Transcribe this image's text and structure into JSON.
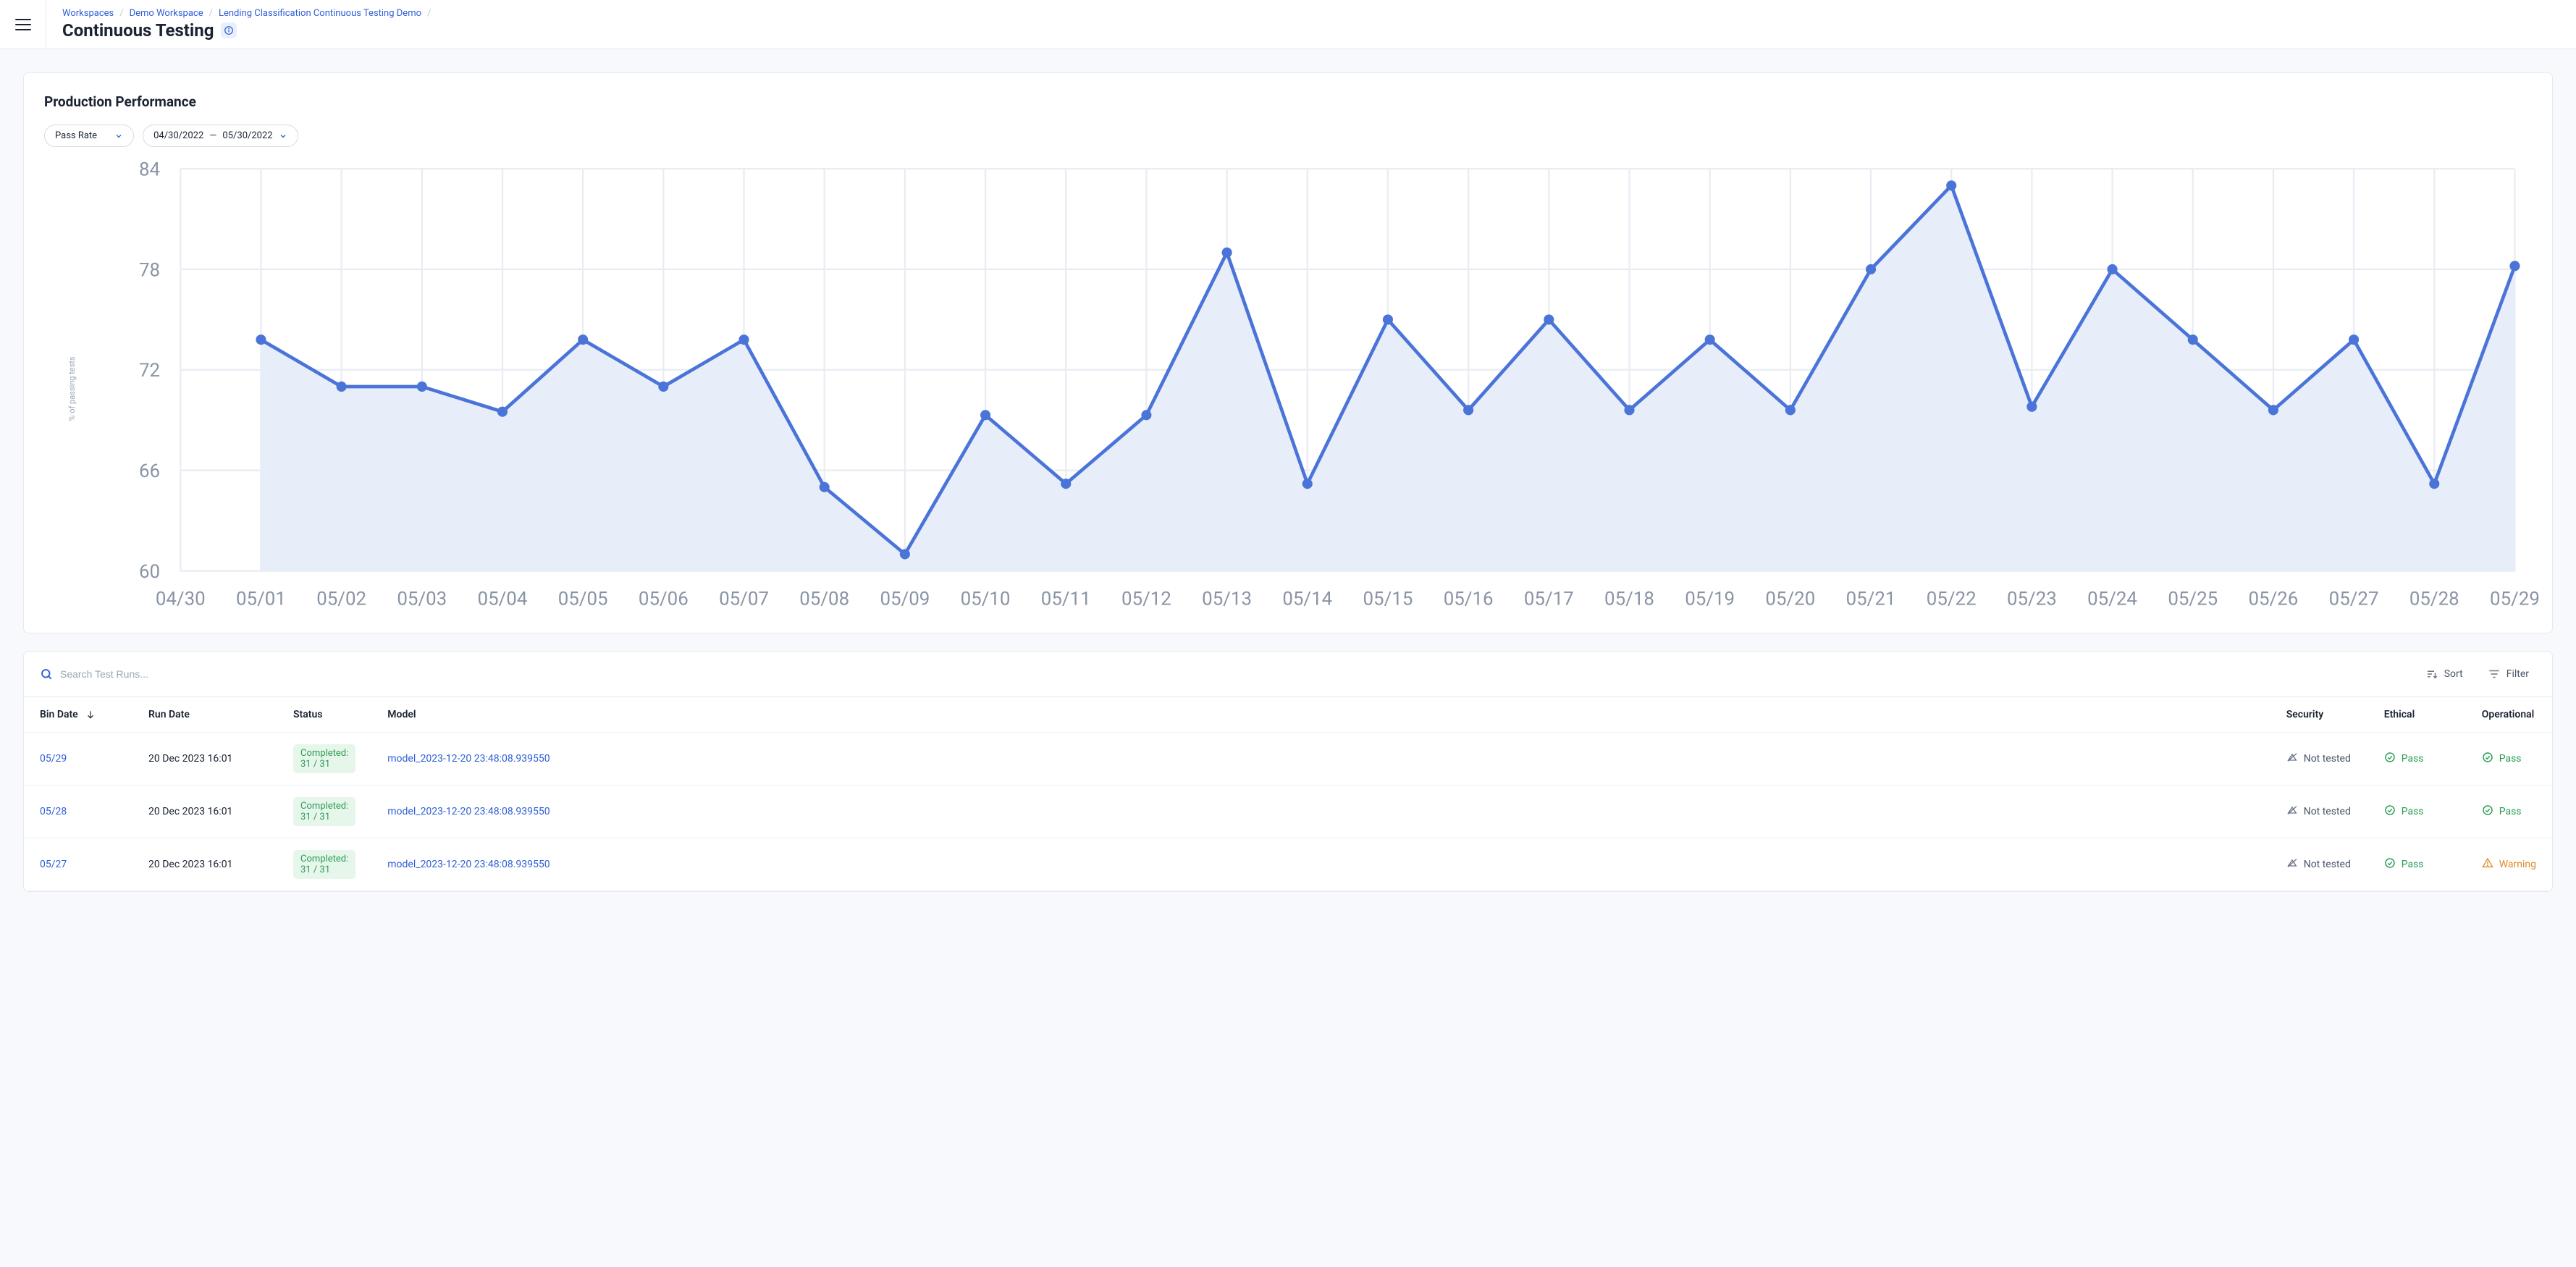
{
  "breadcrumb": {
    "items": [
      "Workspaces",
      "Demo Workspace",
      "Lending Classification Continuous Testing Demo"
    ]
  },
  "page": {
    "title": "Continuous Testing"
  },
  "chart": {
    "title": "Production Performance",
    "metric_selector": "Pass Rate",
    "date_from": "04/30/2022",
    "date_sep": "—",
    "date_to": "05/30/2022",
    "type": "area-line",
    "y_label": "% of passing tests",
    "y_ticks": [
      60,
      66,
      72,
      78,
      84
    ],
    "ylim": [
      60,
      84
    ],
    "x_labels": [
      "04/30",
      "05/01",
      "05/02",
      "05/03",
      "05/04",
      "05/05",
      "05/06",
      "05/07",
      "05/08",
      "05/09",
      "05/10",
      "05/11",
      "05/12",
      "05/13",
      "05/14",
      "05/15",
      "05/16",
      "05/17",
      "05/18",
      "05/19",
      "05/20",
      "05/21",
      "05/22",
      "05/23",
      "05/24",
      "05/25",
      "05/26",
      "05/27",
      "05/28",
      "05/29"
    ],
    "x_indices_with_data": [
      1,
      2,
      3,
      4,
      5,
      6,
      7,
      8,
      9,
      10,
      11,
      12,
      13,
      14,
      15,
      16,
      17,
      18,
      19,
      20,
      21,
      22,
      23,
      24,
      25,
      26,
      27,
      28,
      29
    ],
    "values": [
      73.8,
      71,
      71,
      69.5,
      73.8,
      71,
      73.8,
      65,
      61,
      69.3,
      65.2,
      69.3,
      79,
      65.2,
      75,
      69.6,
      75,
      69.6,
      73.8,
      69.6,
      78,
      83,
      69.8,
      78,
      73.8,
      69.6,
      73.8,
      65.2,
      78.2
    ],
    "line_color": "#4a74d8",
    "fill_color": "#e8edfa",
    "grid_color": "#e9edf3",
    "tick_color": "#8a94a5",
    "point_radius": 3,
    "line_width": 2
  },
  "table": {
    "search_placeholder": "Search Test Runs...",
    "sort_label": "Sort",
    "filter_label": "Filter",
    "columns": {
      "bin_date": "Bin Date",
      "run_date": "Run Date",
      "status": "Status",
      "model": "Model",
      "security": "Security",
      "ethical": "Ethical",
      "operational": "Operational"
    },
    "status_labels": {
      "not_tested": "Not tested",
      "pass": "Pass",
      "warning": "Warning"
    },
    "rows": [
      {
        "bin_date": "05/29",
        "run_date": "20 Dec 2023 16:01",
        "status": "Completed: 31 / 31",
        "model": "model_2023-12-20 23:48:08.939550",
        "security": "not_tested",
        "ethical": "pass",
        "operational": "pass"
      },
      {
        "bin_date": "05/28",
        "run_date": "20 Dec 2023 16:01",
        "status": "Completed: 31 / 31",
        "model": "model_2023-12-20 23:48:08.939550",
        "security": "not_tested",
        "ethical": "pass",
        "operational": "pass"
      },
      {
        "bin_date": "05/27",
        "run_date": "20 Dec 2023 16:01",
        "status": "Completed: 31 / 31",
        "model": "model_2023-12-20 23:48:08.939550",
        "security": "not_tested",
        "ethical": "pass",
        "operational": "warning"
      }
    ]
  }
}
